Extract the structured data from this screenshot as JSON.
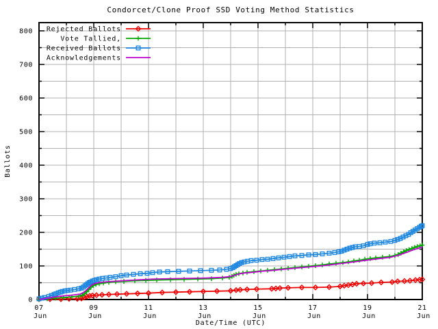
{
  "window": {
    "background": "#ffffff"
  },
  "chart_data": {
    "type": "line",
    "title": "Condorcet/Clone Proof SSD Voting Method Statistics",
    "xlabel": "Date/Time (UTC)",
    "ylabel": "Ballots",
    "x_unit": "days since 07 Jun 00:00 UTC",
    "xlim_days": [
      0,
      14
    ],
    "ylim": [
      0,
      824
    ],
    "y_tick_step": 100,
    "y_minor_step": 50,
    "x_tick_step_days": 2,
    "x_minor_step_days": 1,
    "grid": {
      "on": true,
      "color": "#b0b0b0",
      "x_every_days": 1,
      "y_every": 50
    },
    "legend_position": "top-left",
    "y_ticks": [
      "0",
      "100",
      "200",
      "300",
      "400",
      "500",
      "600",
      "700",
      "800"
    ],
    "x_ticks": [
      {
        "day": 0,
        "line1": "07",
        "line2": "Jun"
      },
      {
        "day": 2,
        "line1": "09",
        "line2": "Jun"
      },
      {
        "day": 4,
        "line1": "11",
        "line2": "Jun"
      },
      {
        "day": 6,
        "line1": "13",
        "line2": "Jun"
      },
      {
        "day": 8,
        "line1": "15",
        "line2": "Jun"
      },
      {
        "day": 10,
        "line1": "17",
        "line2": "Jun"
      },
      {
        "day": 12,
        "line1": "19",
        "line2": "Jun"
      },
      {
        "day": 14,
        "line1": "21",
        "line2": "Jun"
      }
    ],
    "series": [
      {
        "name": "Rejected Ballots",
        "color": "#ee0000",
        "marker": "diamond",
        "points": [
          [
            0,
            1
          ],
          [
            0.4,
            1
          ],
          [
            0.8,
            1
          ],
          [
            1.1,
            2
          ],
          [
            1.4,
            2
          ],
          [
            1.55,
            3
          ],
          [
            1.65,
            6
          ],
          [
            1.75,
            9
          ],
          [
            1.85,
            11
          ],
          [
            1.95,
            12
          ],
          [
            2.1,
            13
          ],
          [
            2.3,
            14
          ],
          [
            2.55,
            15
          ],
          [
            2.85,
            16
          ],
          [
            3.2,
            17
          ],
          [
            3.6,
            18
          ],
          [
            4.0,
            19
          ],
          [
            4.5,
            21
          ],
          [
            5.0,
            22
          ],
          [
            5.5,
            23
          ],
          [
            6.0,
            24
          ],
          [
            6.5,
            25
          ],
          [
            7.0,
            26
          ],
          [
            7.2,
            28
          ],
          [
            7.35,
            29
          ],
          [
            7.6,
            30
          ],
          [
            7.95,
            31
          ],
          [
            8.5,
            32
          ],
          [
            8.65,
            33
          ],
          [
            8.8,
            34
          ],
          [
            9.1,
            35
          ],
          [
            9.6,
            36
          ],
          [
            10.1,
            36
          ],
          [
            10.6,
            37
          ],
          [
            11.0,
            39
          ],
          [
            11.15,
            41
          ],
          [
            11.3,
            43
          ],
          [
            11.45,
            45
          ],
          [
            11.6,
            47
          ],
          [
            11.85,
            48
          ],
          [
            12.15,
            49
          ],
          [
            12.5,
            51
          ],
          [
            12.9,
            52
          ],
          [
            13.1,
            54
          ],
          [
            13.35,
            55
          ],
          [
            13.55,
            56
          ],
          [
            13.75,
            58
          ],
          [
            13.9,
            59
          ],
          [
            14,
            60
          ]
        ]
      },
      {
        "name": "Vote Tallied,",
        "color": "#00aa00",
        "marker": "plus",
        "points": [
          [
            0,
            0
          ],
          [
            0.3,
            2
          ],
          [
            0.6,
            4
          ],
          [
            0.9,
            6
          ],
          [
            1.2,
            8
          ],
          [
            1.45,
            10
          ],
          [
            1.58,
            13
          ],
          [
            1.66,
            17
          ],
          [
            1.74,
            23
          ],
          [
            1.82,
            30
          ],
          [
            1.9,
            37
          ],
          [
            1.98,
            42
          ],
          [
            2.08,
            45
          ],
          [
            2.2,
            47
          ],
          [
            2.35,
            49
          ],
          [
            2.55,
            51
          ],
          [
            2.8,
            53
          ],
          [
            3.1,
            54
          ],
          [
            3.5,
            56
          ],
          [
            3.9,
            57
          ],
          [
            4.3,
            58
          ],
          [
            4.8,
            59
          ],
          [
            5.3,
            60
          ],
          [
            5.8,
            61
          ],
          [
            6.3,
            62
          ],
          [
            6.7,
            64
          ],
          [
            6.95,
            66
          ],
          [
            7.05,
            69
          ],
          [
            7.12,
            72
          ],
          [
            7.2,
            75
          ],
          [
            7.3,
            77
          ],
          [
            7.45,
            79
          ],
          [
            7.6,
            81
          ],
          [
            7.85,
            83
          ],
          [
            8.1,
            85
          ],
          [
            8.35,
            87
          ],
          [
            8.6,
            89
          ],
          [
            8.85,
            91
          ],
          [
            9.1,
            93
          ],
          [
            9.35,
            95
          ],
          [
            9.6,
            97
          ],
          [
            9.85,
            99
          ],
          [
            10.1,
            101
          ],
          [
            10.35,
            103
          ],
          [
            10.6,
            106
          ],
          [
            10.85,
            108
          ],
          [
            11.1,
            110
          ],
          [
            11.3,
            112
          ],
          [
            11.5,
            115
          ],
          [
            11.7,
            117
          ],
          [
            11.9,
            120
          ],
          [
            12.1,
            122
          ],
          [
            12.3,
            124
          ],
          [
            12.55,
            126
          ],
          [
            12.8,
            128
          ],
          [
            13.0,
            131
          ],
          [
            13.12,
            134
          ],
          [
            13.22,
            138
          ],
          [
            13.32,
            142
          ],
          [
            13.42,
            146
          ],
          [
            13.52,
            149
          ],
          [
            13.62,
            152
          ],
          [
            13.72,
            155
          ],
          [
            13.82,
            158
          ],
          [
            13.92,
            160
          ],
          [
            14,
            162
          ]
        ]
      },
      {
        "name": "Received Ballots",
        "color": "#1e87e0",
        "marker": "square",
        "points": [
          [
            0,
            2
          ],
          [
            0.1,
            4
          ],
          [
            0.2,
            6
          ],
          [
            0.35,
            9
          ],
          [
            0.45,
            12
          ],
          [
            0.55,
            15
          ],
          [
            0.62,
            17
          ],
          [
            0.7,
            20
          ],
          [
            0.78,
            22
          ],
          [
            0.85,
            24
          ],
          [
            0.95,
            26
          ],
          [
            1.05,
            27
          ],
          [
            1.15,
            28
          ],
          [
            1.3,
            30
          ],
          [
            1.45,
            32
          ],
          [
            1.55,
            34
          ],
          [
            1.62,
            37
          ],
          [
            1.68,
            41
          ],
          [
            1.73,
            44
          ],
          [
            1.78,
            47
          ],
          [
            1.83,
            50
          ],
          [
            1.88,
            52
          ],
          [
            1.95,
            55
          ],
          [
            2.02,
            57
          ],
          [
            2.1,
            59
          ],
          [
            2.2,
            61
          ],
          [
            2.32,
            63
          ],
          [
            2.45,
            64
          ],
          [
            2.6,
            66
          ],
          [
            2.8,
            68
          ],
          [
            3.0,
            71
          ],
          [
            3.2,
            73
          ],
          [
            3.45,
            75
          ],
          [
            3.7,
            77
          ],
          [
            3.95,
            78
          ],
          [
            4.15,
            80
          ],
          [
            4.4,
            82
          ],
          [
            4.7,
            83
          ],
          [
            5.1,
            84
          ],
          [
            5.5,
            85
          ],
          [
            5.9,
            86
          ],
          [
            6.3,
            87
          ],
          [
            6.6,
            88
          ],
          [
            6.85,
            90
          ],
          [
            7.0,
            92
          ],
          [
            7.08,
            95
          ],
          [
            7.14,
            98
          ],
          [
            7.2,
            101
          ],
          [
            7.26,
            104
          ],
          [
            7.32,
            107
          ],
          [
            7.4,
            110
          ],
          [
            7.5,
            112
          ],
          [
            7.62,
            114
          ],
          [
            7.75,
            116
          ],
          [
            7.95,
            117
          ],
          [
            8.15,
            119
          ],
          [
            8.35,
            120
          ],
          [
            8.55,
            122
          ],
          [
            8.75,
            124
          ],
          [
            8.95,
            126
          ],
          [
            9.15,
            128
          ],
          [
            9.35,
            130
          ],
          [
            9.6,
            131
          ],
          [
            9.85,
            133
          ],
          [
            10.1,
            134
          ],
          [
            10.35,
            136
          ],
          [
            10.6,
            138
          ],
          [
            10.8,
            140
          ],
          [
            10.95,
            142
          ],
          [
            11.05,
            144
          ],
          [
            11.15,
            147
          ],
          [
            11.25,
            150
          ],
          [
            11.35,
            153
          ],
          [
            11.45,
            155
          ],
          [
            11.55,
            157
          ],
          [
            11.7,
            158
          ],
          [
            11.85,
            160
          ],
          [
            12.0,
            164
          ],
          [
            12.1,
            166
          ],
          [
            12.25,
            168
          ],
          [
            12.45,
            169
          ],
          [
            12.65,
            171
          ],
          [
            12.85,
            173
          ],
          [
            13.0,
            176
          ],
          [
            13.1,
            179
          ],
          [
            13.2,
            182
          ],
          [
            13.3,
            186
          ],
          [
            13.4,
            190
          ],
          [
            13.5,
            194
          ],
          [
            13.58,
            199
          ],
          [
            13.66,
            203
          ],
          [
            13.74,
            207
          ],
          [
            13.82,
            211
          ],
          [
            13.9,
            215
          ],
          [
            13.96,
            218
          ],
          [
            14,
            220
          ]
        ]
      },
      {
        "name": "Acknowledgements",
        "color": "#bf00cf",
        "marker": "none",
        "points": [
          [
            0,
            0
          ],
          [
            0.3,
            4
          ],
          [
            0.6,
            8
          ],
          [
            0.9,
            11
          ],
          [
            1.2,
            13
          ],
          [
            1.5,
            16
          ],
          [
            1.62,
            21
          ],
          [
            1.72,
            27
          ],
          [
            1.82,
            35
          ],
          [
            1.92,
            43
          ],
          [
            2.05,
            48
          ],
          [
            2.25,
            51
          ],
          [
            2.5,
            53
          ],
          [
            2.85,
            55
          ],
          [
            3.25,
            57
          ],
          [
            3.7,
            59
          ],
          [
            4.2,
            61
          ],
          [
            4.8,
            62
          ],
          [
            5.5,
            63
          ],
          [
            6.1,
            64
          ],
          [
            6.7,
            66
          ],
          [
            6.95,
            68
          ],
          [
            7.1,
            71
          ],
          [
            7.22,
            74
          ],
          [
            7.35,
            77
          ],
          [
            7.5,
            79
          ],
          [
            7.8,
            81
          ],
          [
            8.1,
            84
          ],
          [
            8.45,
            86
          ],
          [
            8.8,
            89
          ],
          [
            9.2,
            92
          ],
          [
            9.6,
            95
          ],
          [
            10.0,
            98
          ],
          [
            10.4,
            101
          ],
          [
            10.8,
            105
          ],
          [
            11.2,
            109
          ],
          [
            11.6,
            113
          ],
          [
            11.95,
            117
          ],
          [
            12.25,
            120
          ],
          [
            12.55,
            123
          ],
          [
            12.85,
            126
          ],
          [
            13.05,
            130
          ],
          [
            13.18,
            133
          ],
          [
            13.3,
            137
          ],
          [
            13.45,
            141
          ],
          [
            13.6,
            146
          ],
          [
            13.75,
            150
          ],
          [
            13.9,
            154
          ],
          [
            14,
            157
          ]
        ]
      }
    ]
  }
}
